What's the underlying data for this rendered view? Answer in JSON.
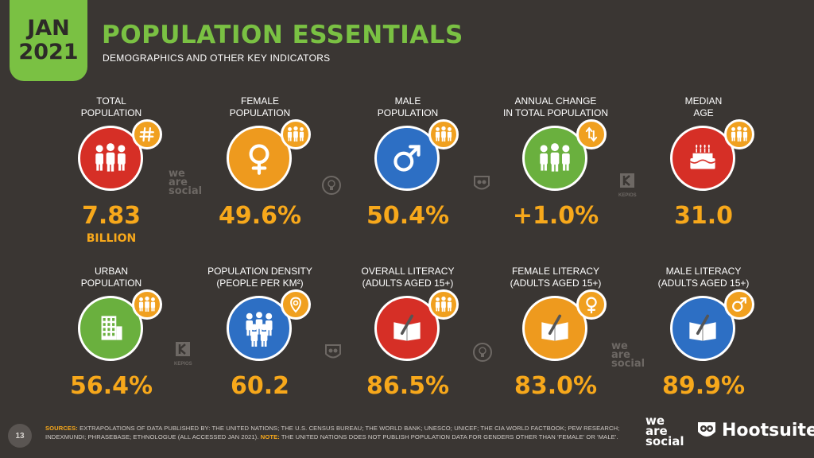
{
  "header": {
    "month": "JAN",
    "year": "2021",
    "title": "POPULATION ESSENTIALS",
    "subtitle": "DEMOGRAPHICS AND OTHER KEY INDICATORS"
  },
  "colors": {
    "accent_green": "#7ac143",
    "value_orange": "#f7a81b",
    "red": "#d62f26",
    "orange": "#ee9a1e",
    "blue": "#2d6fc4",
    "green": "#6ab03e",
    "background": "#3a3633"
  },
  "stats": [
    {
      "label": "TOTAL\nPOPULATION",
      "value": "7.83",
      "unit": "BILLION",
      "color": "red",
      "icon": "people-icon",
      "badge": "hash-icon"
    },
    {
      "label": "FEMALE\nPOPULATION",
      "value": "49.6%",
      "unit": "",
      "color": "orange",
      "icon": "female-icon",
      "badge": "people-icon"
    },
    {
      "label": "MALE\nPOPULATION",
      "value": "50.4%",
      "unit": "",
      "color": "blue",
      "icon": "male-icon",
      "badge": "people-icon"
    },
    {
      "label": "ANNUAL CHANGE\nIN TOTAL POPULATION",
      "value": "+1.0%",
      "unit": "",
      "color": "green",
      "icon": "people-icon",
      "badge": "up-down-arrows-icon"
    },
    {
      "label": "MEDIAN\nAGE",
      "value": "31.0",
      "unit": "",
      "color": "red",
      "icon": "birthday-cake-icon",
      "badge": "people-icon"
    },
    {
      "label": "URBAN\nPOPULATION",
      "value": "56.4%",
      "unit": "",
      "color": "green",
      "icon": "building-icon",
      "badge": "people-icon"
    },
    {
      "label": "POPULATION DENSITY\n(PEOPLE PER KM²)",
      "value": "60.2",
      "unit": "",
      "color": "blue",
      "icon": "crowd-icon",
      "badge": "location-pin-icon"
    },
    {
      "label": "OVERALL LITERACY\n(ADULTS AGED 15+)",
      "value": "86.5%",
      "unit": "",
      "color": "red",
      "icon": "book-pen-icon",
      "badge": "people-icon"
    },
    {
      "label": "FEMALE LITERACY\n(ADULTS AGED 15+)",
      "value": "83.0%",
      "unit": "",
      "color": "orange",
      "icon": "book-pen-icon",
      "badge": "female-icon"
    },
    {
      "label": "MALE LITERACY\n(ADULTS AGED 15+)",
      "value": "89.9%",
      "unit": "",
      "color": "blue",
      "icon": "book-pen-icon",
      "badge": "male-icon"
    }
  ],
  "watermarks": {
    "we_are_social": [
      "we",
      "are",
      "social"
    ],
    "kepios": "KEPIOS"
  },
  "footer": {
    "page_number": "13",
    "sources_label": "SOURCES:",
    "sources_text": " EXTRAPOLATIONS OF DATA PUBLISHED BY: THE UNITED NATIONS; THE U.S. CENSUS BUREAU; THE WORLD BANK; UNESCO; UNICEF; THE CIA WORLD FACTBOOK; PEW RESEARCH; INDEXMUNDI; PHRASEBASE; ETHNOLOGUE (ALL ACCESSED JAN 2021). ",
    "note_label": "NOTE:",
    "note_text": " THE UNITED NATIONS DOES NOT PUBLISH POPULATION DATA FOR GENDERS OTHER THAN 'FEMALE' OR 'MALE'.",
    "logo_was": [
      "we",
      "are",
      "social"
    ],
    "logo_hootsuite": "Hootsuite"
  }
}
